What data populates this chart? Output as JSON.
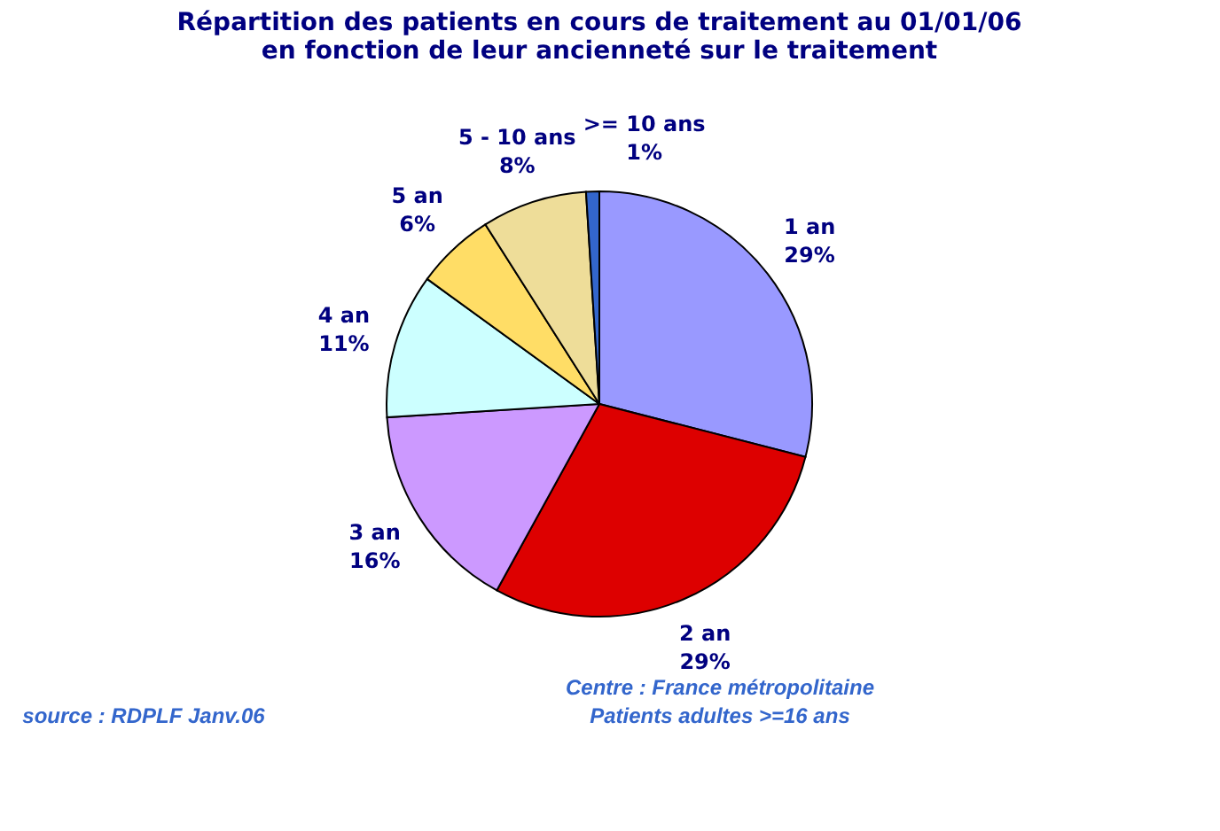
{
  "chart_data": {
    "type": "pie",
    "title": "Répartition des patients en cours de traitement au 01/01/06\nen fonction de leur ancienneté sur le traitement",
    "categories": [
      "1 an",
      "2 an",
      "3 an",
      "4 an",
      "5 an",
      "5 - 10 ans",
      ">= 10 ans"
    ],
    "values": [
      29,
      29,
      16,
      11,
      6,
      8,
      1
    ],
    "value_labels": [
      "29%",
      "29%",
      "16%",
      "11%",
      "6%",
      "8%",
      "1%"
    ],
    "colors": [
      "#9999ff",
      "#dd0000",
      "#cc99ff",
      "#ccffff",
      "#ffdd66",
      "#eedd99",
      "#3366cc"
    ],
    "legend": false,
    "annotations": [
      "Centre : France métropolitaine",
      "Patients adultes >=16 ans",
      "source : RDPLF  Janv.06"
    ]
  }
}
